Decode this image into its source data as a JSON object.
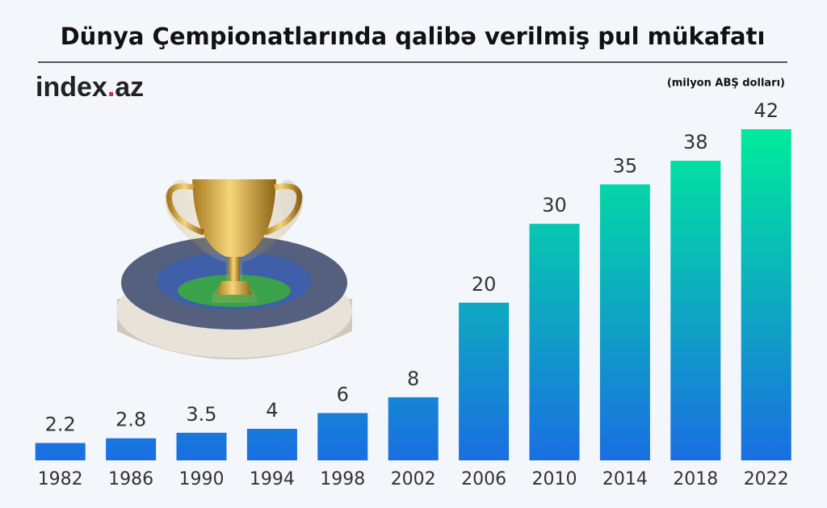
{
  "chart_data": {
    "type": "bar",
    "title": "Dünya Çempionatlarında qalibə verilmiş pul mükafatı",
    "subtitle": "(milyon ABŞ dolları)",
    "brand": [
      "index",
      ".",
      "az"
    ],
    "categories": [
      "1982",
      "1986",
      "1990",
      "1994",
      "1998",
      "2002",
      "2006",
      "2010",
      "2014",
      "2018",
      "2022"
    ],
    "values": [
      2.2,
      2.8,
      3.5,
      4,
      6,
      8,
      20,
      30,
      35,
      38,
      42
    ]
  }
}
